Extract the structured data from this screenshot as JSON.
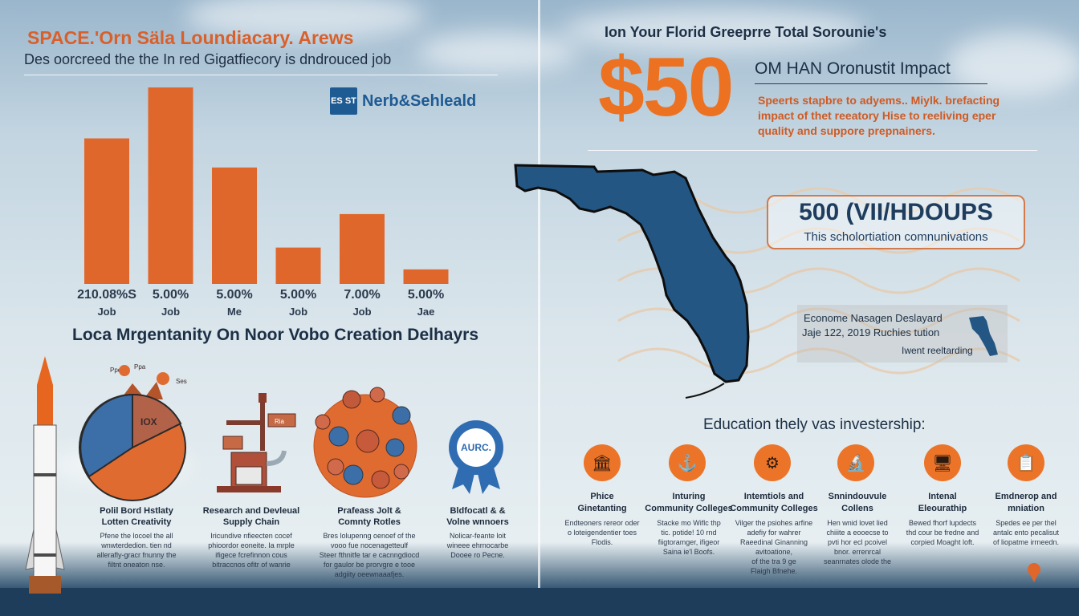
{
  "left": {
    "title": "SPACE.'Orn Säla Loundiacary. Arews",
    "subtitle": "Des oorcreed the the In red Gigatfiecory is dndrouced job",
    "logo_text": "Nerb&Sehleald",
    "logo_mark": "ES ST",
    "bars": [
      {
        "label": "210.08%S",
        "category": "Job",
        "value": 100
      },
      {
        "label": "5.00%",
        "category": "Job",
        "value": 135
      },
      {
        "label": "5.00%",
        "category": "Me",
        "value": 80
      },
      {
        "label": "5.00%",
        "category": "Job",
        "value": 25
      },
      {
        "label": "7.00%",
        "category": "Job",
        "value": 48
      },
      {
        "label": "5.00%",
        "category": "Jae",
        "value": 10
      }
    ],
    "section_heading": "Loca Mrgentanity On Noor Vobo Creation Delhayrs",
    "pie_center_label": "IOX",
    "cogs_labels": [
      "Ppe",
      "Ppa",
      "Ses"
    ],
    "sign_label": "Ria",
    "badge_label": "AURC.",
    "items": [
      {
        "title": "Polil Bord Hstlaty\nLotten Creativity",
        "desc": "Pfene the locoel the all\nwnwterdedion. tien nd\nallerafly-gracr fnunny the\nfiltnt oneaton nse."
      },
      {
        "title": "Research and Devleual\nSupply Chain",
        "desc": "Iricundive nfieecten cocef\nphioordor eoneite. Ia mrple\nifigece fcrefinnon cous\nbitraccnos ofitr of wanrie"
      },
      {
        "title": "Prafeass Jolt &\nComnty Rotles",
        "desc": "Bres lolupenng oenoef of the\nvooo fue nocenagetteulf\nSteer fthnitfe tar e cacnngdiocd\nfor gaulor be prorvgre e tooe\nadgiity oeewnaaafjes."
      },
      {
        "title": "Bldfocatl & &\nVolne wnnoers",
        "desc": "Nolicar-feante loit\nwineee ehrnocarbe\nDooee ro Pecne."
      }
    ]
  },
  "right": {
    "heading": "Ion Your Florid Greeprre Total Sorounie's",
    "big_number": "$50",
    "impact_title": "OM HAN Oronustit Impact",
    "impact_desc": "Speerts stapbre to adyems.. Miylk. brefacting impact of thet reeatory Hise to reeliving eper quality and suppore prepnainers.",
    "pill_number": "500 (VII/HDOUPS",
    "pill_sub": "This scholortiation comnunivations",
    "econ_title": "Econome Nasagen Deslayard",
    "econ_date": "Jaje 122, 2019 Ruchies tution",
    "econ_sub": "Iwent reeltarding",
    "edu_heading": "Education thely vas investership:",
    "edu_items": [
      {
        "icon": "🏛",
        "title": "Phice\nGinetanting",
        "desc": "Endteoners rereor oder\no loteigendentier toes\nFlodis."
      },
      {
        "icon": "⚓",
        "title": "Inturing\nCommunity Colleges",
        "desc": "Stacke mo Wiflc thp\ntic. potide! 10 rnd\nfiigtoramger, ifigeor\nSaina ie'l Boofs."
      },
      {
        "icon": "⚙",
        "title": "Intemtiols and\nCommunity Colleges",
        "desc": "Vilger the psiohes arfine\nadefiy for wahrer\nRaeedinal Ginanning\navitoatione,\nof the tra 9 ge\nFlaigh Bfnehe."
      },
      {
        "icon": "🔬",
        "title": "Snnindouvule\nCollens",
        "desc": "Hen wnid lovet lied\nchiiite a eooecse to\npvti hor ecl pcoivel\nbnor. errenrcal\nseanrnates olode the"
      },
      {
        "icon": "🖥",
        "title": "Intenal\nEleourathip",
        "desc": "Bewed fhorf lupdects\nthd cour be fredne and\ncorpied Moaght loft."
      },
      {
        "icon": "📋",
        "title": "Emdnerop and\nmniation",
        "desc": "Spedes ee per thel\nantalc ento pecalisut\nof liopatme irrneedn."
      }
    ]
  }
}
